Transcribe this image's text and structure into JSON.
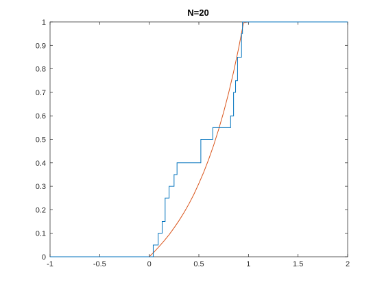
{
  "chart_data": {
    "type": "line",
    "title": "N=20",
    "xlabel": "",
    "ylabel": "",
    "xlim": [
      -1,
      2
    ],
    "ylim": [
      0,
      1
    ],
    "xticks": [
      -1,
      -0.5,
      0,
      0.5,
      1,
      1.5,
      2
    ],
    "xtick_labels": [
      "-1",
      "-0.5",
      "0",
      "0.5",
      "1",
      "1.5",
      "2"
    ],
    "yticks": [
      0,
      0.1,
      0.2,
      0.3,
      0.4,
      0.5,
      0.6,
      0.7,
      0.8,
      0.9,
      1
    ],
    "ytick_labels": [
      "0",
      "0.1",
      "0.2",
      "0.3",
      "0.4",
      "0.5",
      "0.6",
      "0.7",
      "0.8",
      "0.9",
      "1"
    ],
    "grid": false,
    "legend": "none",
    "series": [
      {
        "kind": "empirical-cdf-step",
        "color": "#0072BD",
        "x": [
          -1,
          0.04,
          0.09,
          0.13,
          0.16,
          0.2,
          0.25,
          0.28,
          0.32,
          0.52,
          0.64,
          0.82,
          0.85,
          0.87,
          0.89,
          0.93,
          0.94,
          2
        ],
        "y": [
          0,
          0.05,
          0.1,
          0.15,
          0.25,
          0.3,
          0.35,
          0.4,
          0.4,
          0.5,
          0.55,
          0.6,
          0.7,
          0.75,
          0.85,
          0.95,
          1.0,
          1.0
        ]
      },
      {
        "kind": "theoretical-cdf",
        "color": "#D95319",
        "x": [
          -1,
          0.0,
          0.05,
          0.1,
          0.15,
          0.2,
          0.25,
          0.3,
          0.35,
          0.4,
          0.45,
          0.5,
          0.55,
          0.6,
          0.65,
          0.7,
          0.75,
          0.8,
          0.85,
          0.9,
          0.95,
          1.0,
          2
        ],
        "y": [
          0,
          0.0,
          0.021,
          0.044,
          0.068,
          0.094,
          0.123,
          0.154,
          0.188,
          0.225,
          0.266,
          0.312,
          0.361,
          0.416,
          0.476,
          0.543,
          0.616,
          0.697,
          0.787,
          0.886,
          0.996,
          1.0,
          1.0
        ]
      }
    ]
  }
}
